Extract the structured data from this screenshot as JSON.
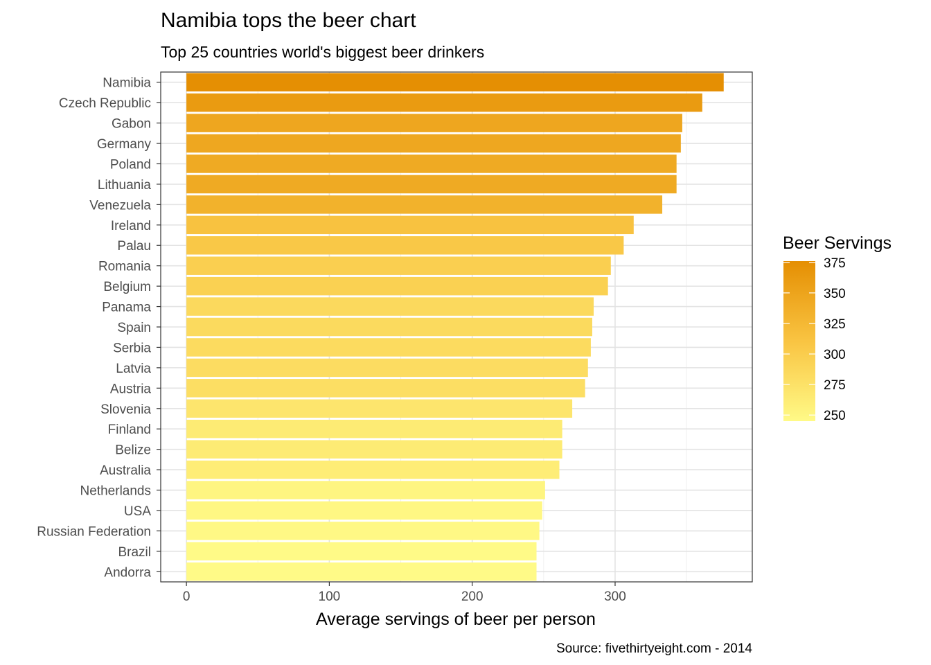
{
  "chart_data": {
    "type": "bar",
    "orientation": "horizontal",
    "title": "Namibia tops the beer chart",
    "subtitle": "Top 25 countries world's biggest beer drinkers",
    "xlabel": "Average servings of beer per person",
    "ylabel": "",
    "caption": "Source: fivethirtyeight.com - 2014",
    "xlim": [
      -18,
      396
    ],
    "x_ticks": [
      0,
      100,
      200,
      300
    ],
    "grid": true,
    "categories": [
      "Namibia",
      "Czech Republic",
      "Gabon",
      "Germany",
      "Poland",
      "Lithuania",
      "Venezuela",
      "Ireland",
      "Palau",
      "Romania",
      "Belgium",
      "Panama",
      "Spain",
      "Serbia",
      "Latvia",
      "Austria",
      "Slovenia",
      "Finland",
      "Belize",
      "Australia",
      "Netherlands",
      "USA",
      "Russian Federation",
      "Brazil",
      "Andorra"
    ],
    "values": [
      376,
      361,
      347,
      346,
      343,
      343,
      333,
      313,
      306,
      297,
      295,
      285,
      284,
      283,
      281,
      279,
      270,
      263,
      263,
      261,
      251,
      249,
      247,
      245,
      245
    ],
    "legend": {
      "title": "Beer Servings",
      "position": "right",
      "ticks": [
        250,
        275,
        300,
        325,
        350,
        375
      ],
      "range": [
        245,
        376
      ],
      "color_low": "#fffa87",
      "color_mid": "#f9c442",
      "color_high": "#e58f03"
    }
  }
}
